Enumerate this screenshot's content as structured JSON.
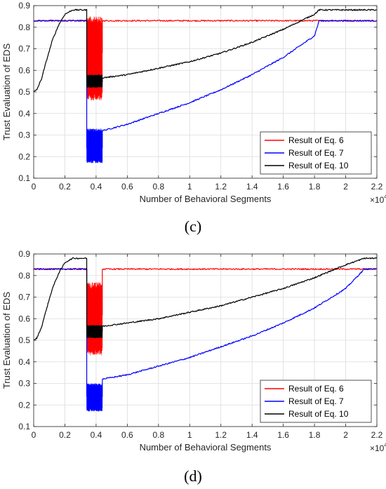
{
  "chart_data": [
    {
      "type": "line",
      "panel_label": "(c)",
      "xlabel": "Number of Behavioral Segments",
      "ylabel": "Trust Evaluation of EDS",
      "x_exponent_label": "×10",
      "x_exponent_power": "4",
      "xlim": [
        0,
        2.2
      ],
      "ylim": [
        0.1,
        0.9
      ],
      "xticks": [
        "0",
        "0.2",
        "0.4",
        "0.6",
        "0.8",
        "1",
        "1.2",
        "1.4",
        "1.6",
        "1.8",
        "2",
        "2.2"
      ],
      "yticks": [
        "0.1",
        "0.2",
        "0.3",
        "0.4",
        "0.5",
        "0.6",
        "0.7",
        "0.8",
        "0.9"
      ],
      "grid": true,
      "legend_position": "bottom-right",
      "series": [
        {
          "name": "Result of Eq. 6",
          "color": "#ff0000",
          "x": [
            0,
            0.34,
            0.34,
            0.44,
            0.44,
            2.2
          ],
          "y": [
            0.83,
            0.83,
            0.68,
            0.68,
            0.83,
            0.83
          ],
          "noisy_x_range": [
            0.34,
            0.44
          ],
          "noisy_y_range": [
            0.46,
            0.85
          ]
        },
        {
          "name": "Result of Eq. 7",
          "color": "#0000ff",
          "x": [
            0,
            0.34,
            0.34,
            0.44,
            0.44,
            0.6,
            0.8,
            1.0,
            1.2,
            1.4,
            1.6,
            1.8,
            1.83,
            2.2
          ],
          "y": [
            0.83,
            0.83,
            0.24,
            0.24,
            0.32,
            0.35,
            0.4,
            0.45,
            0.51,
            0.58,
            0.66,
            0.76,
            0.83,
            0.83
          ],
          "noisy_x_range": [
            0.34,
            0.44
          ],
          "noisy_y_range": [
            0.17,
            0.33
          ]
        },
        {
          "name": "Result of Eq. 10",
          "color": "#000000",
          "x": [
            0,
            0.02,
            0.05,
            0.08,
            0.12,
            0.16,
            0.2,
            0.25,
            0.34,
            0.34,
            0.44,
            0.44,
            0.6,
            0.8,
            1.0,
            1.2,
            1.4,
            1.6,
            1.8,
            1.83,
            2.2
          ],
          "y": [
            0.5,
            0.51,
            0.56,
            0.64,
            0.74,
            0.81,
            0.86,
            0.88,
            0.88,
            0.545,
            0.545,
            0.565,
            0.58,
            0.61,
            0.64,
            0.68,
            0.73,
            0.79,
            0.86,
            0.88,
            0.88
          ],
          "noisy_x_range": [
            0.34,
            0.44
          ],
          "noisy_y_range": [
            0.52,
            0.58
          ]
        }
      ]
    },
    {
      "type": "line",
      "panel_label": "(d)",
      "xlabel": "Number of Behavioral Segments",
      "ylabel": "Trust Evaluation of EDS",
      "x_exponent_label": "×10",
      "x_exponent_power": "4",
      "xlim": [
        0,
        2.2
      ],
      "ylim": [
        0.1,
        0.9
      ],
      "xticks": [
        "0",
        "0.2",
        "0.4",
        "0.6",
        "0.8",
        "1",
        "1.2",
        "1.4",
        "1.6",
        "1.8",
        "2",
        "2.2"
      ],
      "yticks": [
        "0.1",
        "0.2",
        "0.3",
        "0.4",
        "0.5",
        "0.6",
        "0.7",
        "0.8",
        "0.9"
      ],
      "grid": true,
      "legend_position": "bottom-right",
      "series": [
        {
          "name": "Result of Eq. 6",
          "color": "#ff0000",
          "x": [
            0,
            0.34,
            0.34,
            0.44,
            0.44,
            2.2
          ],
          "y": [
            0.83,
            0.83,
            0.62,
            0.62,
            0.83,
            0.83
          ],
          "noisy_x_range": [
            0.34,
            0.44
          ],
          "noisy_y_range": [
            0.43,
            0.77
          ]
        },
        {
          "name": "Result of Eq. 7",
          "color": "#0000ff",
          "x": [
            0,
            0.34,
            0.34,
            0.44,
            0.44,
            0.6,
            0.8,
            1.0,
            1.2,
            1.4,
            1.6,
            1.8,
            2.0,
            2.12,
            2.2
          ],
          "y": [
            0.83,
            0.83,
            0.24,
            0.24,
            0.32,
            0.34,
            0.38,
            0.42,
            0.47,
            0.52,
            0.58,
            0.65,
            0.74,
            0.83,
            0.83
          ],
          "noisy_x_range": [
            0.34,
            0.44
          ],
          "noisy_y_range": [
            0.17,
            0.3
          ]
        },
        {
          "name": "Result of Eq. 10",
          "color": "#000000",
          "x": [
            0,
            0.02,
            0.05,
            0.08,
            0.12,
            0.16,
            0.2,
            0.25,
            0.34,
            0.34,
            0.44,
            0.44,
            0.6,
            0.8,
            1.0,
            1.2,
            1.4,
            1.6,
            1.8,
            2.0,
            2.12,
            2.2
          ],
          "y": [
            0.5,
            0.51,
            0.56,
            0.64,
            0.74,
            0.81,
            0.86,
            0.88,
            0.88,
            0.54,
            0.54,
            0.565,
            0.58,
            0.6,
            0.63,
            0.66,
            0.7,
            0.74,
            0.79,
            0.85,
            0.88,
            0.88
          ],
          "noisy_x_range": [
            0.34,
            0.44
          ],
          "noisy_y_range": [
            0.51,
            0.57
          ]
        }
      ]
    }
  ]
}
